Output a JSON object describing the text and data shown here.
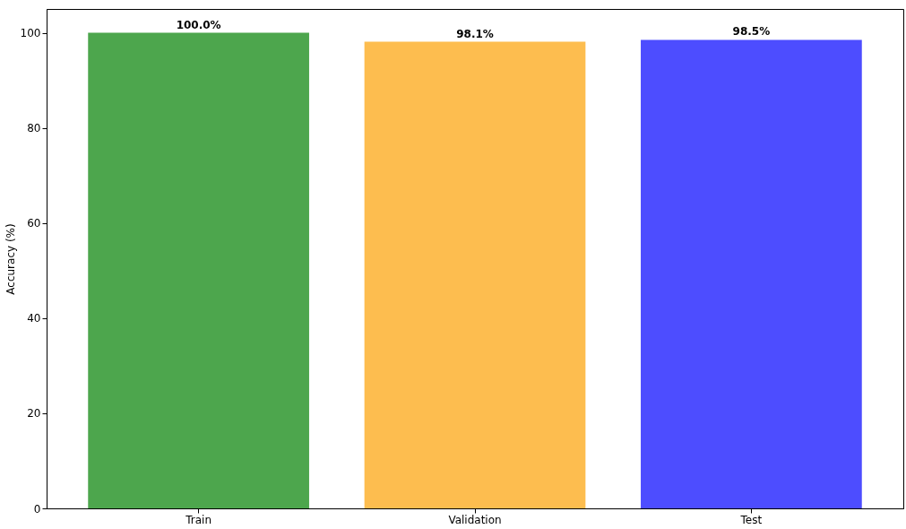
{
  "chart_data": {
    "type": "bar",
    "ylabel": "Accuracy (%)",
    "categories": [
      "Train",
      "Validation",
      "Test"
    ],
    "values": [
      100.0,
      98.1,
      98.5
    ],
    "colors": [
      "#4da64d",
      "#fdbd4f",
      "#4d4dff"
    ],
    "value_labels": [
      "100.0%",
      "98.1%",
      "98.5%"
    ],
    "ylim": [
      0,
      105
    ],
    "yticks": [
      0,
      20,
      40,
      60,
      80,
      100
    ],
    "grid": false
  }
}
